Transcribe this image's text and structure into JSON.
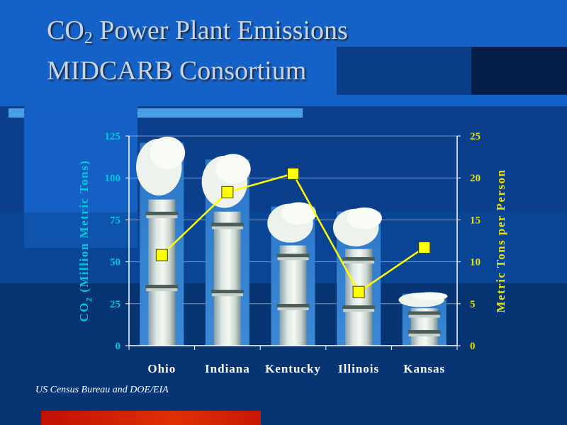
{
  "title_line1_main": "CO",
  "title_line1_sub": "2",
  "title_line1_rest": " Power Plant Emissions",
  "title_line2": "MIDCARB Consortium",
  "source": "US Census Bureau and DOE/EIA",
  "colors": {
    "background": "#0b3f8c",
    "left_axis": "#00c8dc",
    "right_axis": "#e8e000",
    "line": "#ffff00",
    "marker": "#ffff00"
  },
  "chart_data": {
    "type": "bar",
    "categories": [
      "Ohio",
      "Indiana",
      "Kentucky",
      "Illinois",
      "Kansas"
    ],
    "series": [
      {
        "type": "bar",
        "axis": "left",
        "values": [
          121,
          111,
          83,
          80,
          31
        ]
      },
      {
        "type": "line",
        "axis": "right",
        "values": [
          10.8,
          18.3,
          20.5,
          6.4,
          11.7
        ]
      }
    ],
    "ylabel_main": "CO",
    "ylabel_sub": "2",
    "ylabel_rest": " (Million Metric Tons)",
    "y2label": "Metric Tons per Person",
    "ylim": [
      0,
      125
    ],
    "yticks": [
      0,
      25,
      50,
      75,
      100,
      125
    ],
    "y2lim": [
      0,
      25
    ],
    "y2ticks": [
      0,
      5,
      10,
      15,
      20,
      25
    ],
    "grid": true
  }
}
